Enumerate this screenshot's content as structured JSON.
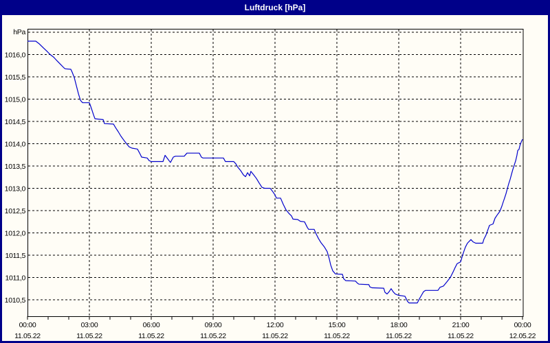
{
  "window": {
    "title": "Luftdruck [hPa]",
    "title_bar_color": "#000089",
    "background_color": "#fffdf6"
  },
  "chart_data": {
    "type": "line",
    "title": "Luftdruck [hPa]",
    "unit_label": "hPa",
    "grid": "dashed black, 0.5 hPa horizontal steps, 3 h vertical steps, hourly minor ticks",
    "legend_position": "none",
    "x_axis": {
      "start": "11.05.22 00:00",
      "end": "12.05.22 00:00",
      "hours_span": 24,
      "minor_tick_every_hours": 1,
      "major_ticks": [
        {
          "hours": 0,
          "time": "00:00",
          "date": "11.05.22"
        },
        {
          "hours": 3,
          "time": "03:00",
          "date": "11.05.22"
        },
        {
          "hours": 6,
          "time": "06:00",
          "date": "11.05.22"
        },
        {
          "hours": 9,
          "time": "09:00",
          "date": "11.05.22"
        },
        {
          "hours": 12,
          "time": "12:00",
          "date": "11.05.22"
        },
        {
          "hours": 15,
          "time": "15:00",
          "date": "11.05.22"
        },
        {
          "hours": 18,
          "time": "18:00",
          "date": "11.05.22"
        },
        {
          "hours": 21,
          "time": "21:00",
          "date": "11.05.22"
        },
        {
          "hours": 24,
          "time": "00:00",
          "date": "12.05.22"
        }
      ]
    },
    "y_axis": {
      "unit": "hPa",
      "min": 1010.13,
      "max": 1016.58,
      "gridlines": [
        {
          "value": 1016.5,
          "label": ""
        },
        {
          "value": 1016.0,
          "label": "1016,0"
        },
        {
          "value": 1015.5,
          "label": "1015,5"
        },
        {
          "value": 1015.0,
          "label": "1015,0"
        },
        {
          "value": 1014.5,
          "label": "1014,5"
        },
        {
          "value": 1014.0,
          "label": "1014,0"
        },
        {
          "value": 1013.5,
          "label": "1013,5"
        },
        {
          "value": 1013.0,
          "label": "1013,0"
        },
        {
          "value": 1012.5,
          "label": "1012,5"
        },
        {
          "value": 1012.0,
          "label": "1012,0"
        },
        {
          "value": 1011.5,
          "label": "1011,5"
        },
        {
          "value": 1011.0,
          "label": "1011,0"
        },
        {
          "value": 1010.5,
          "label": "1010,5"
        }
      ]
    },
    "series": [
      {
        "name": "Luftdruck",
        "color": "#0000cc",
        "points_t_hours_value_hpa": [
          [
            0,
            1016.3
          ],
          [
            0.4,
            1016.3
          ],
          [
            0.57,
            1016.24
          ],
          [
            0.77,
            1016.15
          ],
          [
            0.93,
            1016.08
          ],
          [
            1.1,
            1016.0
          ],
          [
            1.27,
            1015.94
          ],
          [
            1.43,
            1015.86
          ],
          [
            1.6,
            1015.78
          ],
          [
            1.77,
            1015.7
          ],
          [
            1.83,
            1015.68
          ],
          [
            2.1,
            1015.67
          ],
          [
            2.17,
            1015.6
          ],
          [
            2.27,
            1015.48
          ],
          [
            2.37,
            1015.3
          ],
          [
            2.47,
            1015.12
          ],
          [
            2.57,
            1014.97
          ],
          [
            2.67,
            1014.92
          ],
          [
            3.0,
            1014.92
          ],
          [
            3.07,
            1014.83
          ],
          [
            3.13,
            1014.75
          ],
          [
            3.2,
            1014.65
          ],
          [
            3.27,
            1014.56
          ],
          [
            3.67,
            1014.54
          ],
          [
            3.73,
            1014.45
          ],
          [
            4.17,
            1014.44
          ],
          [
            4.27,
            1014.36
          ],
          [
            4.4,
            1014.27
          ],
          [
            4.53,
            1014.17
          ],
          [
            4.67,
            1014.08
          ],
          [
            4.8,
            1014.0
          ],
          [
            4.93,
            1013.93
          ],
          [
            5.07,
            1013.9
          ],
          [
            5.33,
            1013.88
          ],
          [
            5.4,
            1013.82
          ],
          [
            5.47,
            1013.76
          ],
          [
            5.53,
            1013.7
          ],
          [
            5.8,
            1013.68
          ],
          [
            5.9,
            1013.62
          ],
          [
            6.0,
            1013.6
          ],
          [
            6.57,
            1013.6
          ],
          [
            6.67,
            1013.74
          ],
          [
            6.8,
            1013.66
          ],
          [
            6.93,
            1013.58
          ],
          [
            7.07,
            1013.7
          ],
          [
            7.17,
            1013.72
          ],
          [
            7.6,
            1013.72
          ],
          [
            7.73,
            1013.79
          ],
          [
            8.33,
            1013.79
          ],
          [
            8.43,
            1013.7
          ],
          [
            8.5,
            1013.68
          ],
          [
            9.5,
            1013.68
          ],
          [
            9.57,
            1013.62
          ],
          [
            9.6,
            1013.6
          ],
          [
            10.0,
            1013.6
          ],
          [
            10.1,
            1013.55
          ],
          [
            10.2,
            1013.47
          ],
          [
            10.33,
            1013.4
          ],
          [
            10.47,
            1013.3
          ],
          [
            10.57,
            1013.26
          ],
          [
            10.67,
            1013.35
          ],
          [
            10.77,
            1013.28
          ],
          [
            10.83,
            1013.38
          ],
          [
            10.97,
            1013.3
          ],
          [
            11.1,
            1013.22
          ],
          [
            11.23,
            1013.12
          ],
          [
            11.37,
            1013.02
          ],
          [
            11.5,
            1013.0
          ],
          [
            11.77,
            1013.0
          ],
          [
            11.9,
            1012.92
          ],
          [
            12.0,
            1012.85
          ],
          [
            12.07,
            1012.78
          ],
          [
            12.27,
            1012.78
          ],
          [
            12.4,
            1012.64
          ],
          [
            12.53,
            1012.52
          ],
          [
            12.67,
            1012.44
          ],
          [
            12.8,
            1012.38
          ],
          [
            12.87,
            1012.31
          ],
          [
            13.1,
            1012.3
          ],
          [
            13.23,
            1012.26
          ],
          [
            13.43,
            1012.25
          ],
          [
            13.57,
            1012.12
          ],
          [
            13.63,
            1012.08
          ],
          [
            13.9,
            1012.08
          ],
          [
            13.97,
            1012.0
          ],
          [
            14.1,
            1011.88
          ],
          [
            14.23,
            1011.78
          ],
          [
            14.4,
            1011.68
          ],
          [
            14.53,
            1011.58
          ],
          [
            14.63,
            1011.42
          ],
          [
            14.7,
            1011.28
          ],
          [
            14.8,
            1011.15
          ],
          [
            14.93,
            1011.08
          ],
          [
            15.27,
            1011.07
          ],
          [
            15.33,
            1010.97
          ],
          [
            15.43,
            1010.93
          ],
          [
            15.9,
            1010.92
          ],
          [
            16.0,
            1010.87
          ],
          [
            16.07,
            1010.85
          ],
          [
            16.55,
            1010.84
          ],
          [
            16.6,
            1010.79
          ],
          [
            16.7,
            1010.77
          ],
          [
            17.27,
            1010.76
          ],
          [
            17.33,
            1010.67
          ],
          [
            17.43,
            1010.63
          ],
          [
            17.53,
            1010.68
          ],
          [
            17.63,
            1010.75
          ],
          [
            17.73,
            1010.68
          ],
          [
            17.83,
            1010.63
          ],
          [
            17.93,
            1010.61
          ],
          [
            18.0,
            1010.6
          ],
          [
            18.3,
            1010.58
          ],
          [
            18.43,
            1010.46
          ],
          [
            18.5,
            1010.43
          ],
          [
            18.9,
            1010.43
          ],
          [
            19.0,
            1010.52
          ],
          [
            19.1,
            1010.6
          ],
          [
            19.2,
            1010.68
          ],
          [
            19.3,
            1010.71
          ],
          [
            19.9,
            1010.71
          ],
          [
            20.0,
            1010.78
          ],
          [
            20.17,
            1010.81
          ],
          [
            20.33,
            1010.9
          ],
          [
            20.5,
            1011.0
          ],
          [
            20.63,
            1011.12
          ],
          [
            20.73,
            1011.22
          ],
          [
            20.83,
            1011.31
          ],
          [
            21.0,
            1011.35
          ],
          [
            21.07,
            1011.46
          ],
          [
            21.13,
            1011.55
          ],
          [
            21.23,
            1011.68
          ],
          [
            21.33,
            1011.77
          ],
          [
            21.5,
            1011.85
          ],
          [
            21.6,
            1011.8
          ],
          [
            21.73,
            1011.77
          ],
          [
            22.07,
            1011.77
          ],
          [
            22.13,
            1011.86
          ],
          [
            22.23,
            1011.95
          ],
          [
            22.33,
            1012.08
          ],
          [
            22.4,
            1012.17
          ],
          [
            22.57,
            1012.2
          ],
          [
            22.67,
            1012.33
          ],
          [
            22.8,
            1012.42
          ],
          [
            22.9,
            1012.48
          ],
          [
            23.0,
            1012.6
          ],
          [
            23.07,
            1012.7
          ],
          [
            23.13,
            1012.78
          ],
          [
            23.2,
            1012.88
          ],
          [
            23.27,
            1013.0
          ],
          [
            23.33,
            1013.1
          ],
          [
            23.4,
            1013.2
          ],
          [
            23.47,
            1013.32
          ],
          [
            23.53,
            1013.42
          ],
          [
            23.6,
            1013.52
          ],
          [
            23.67,
            1013.62
          ],
          [
            23.73,
            1013.74
          ],
          [
            23.77,
            1013.85
          ],
          [
            23.83,
            1013.87
          ],
          [
            23.87,
            1013.95
          ],
          [
            23.93,
            1014.03
          ],
          [
            24.0,
            1014.1
          ]
        ]
      }
    ]
  }
}
